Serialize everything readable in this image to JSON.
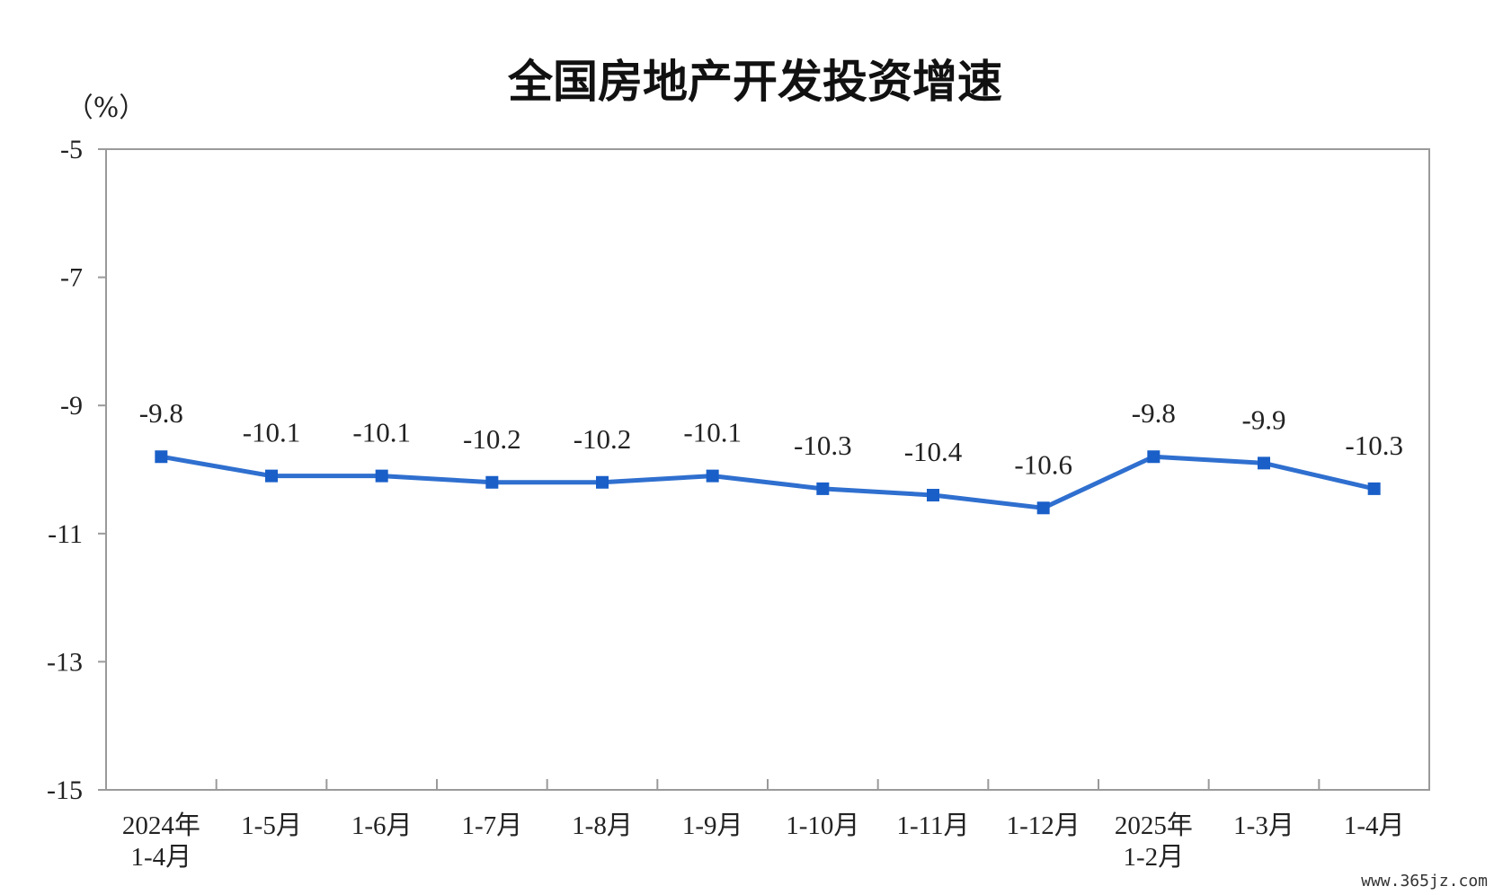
{
  "watermark": "www.365jz.com",
  "colors": {
    "line": "#2f6fcf",
    "marker": "#1a5fc8",
    "axis": "#9a9a9a"
  },
  "chart_data": {
    "type": "line",
    "title": "全国房地产开发投资增速",
    "ylabel": "（%）",
    "ylim": [
      -15,
      -5
    ],
    "yticks": [
      -5,
      -7,
      -9,
      -11,
      -13,
      -15
    ],
    "grid": false,
    "categories": [
      [
        "2024年",
        "1-4月"
      ],
      [
        "1-5月"
      ],
      [
        "1-6月"
      ],
      [
        "1-7月"
      ],
      [
        "1-8月"
      ],
      [
        "1-9月"
      ],
      [
        "1-10月"
      ],
      [
        "1-11月"
      ],
      [
        "1-12月"
      ],
      [
        "2025年",
        "1-2月"
      ],
      [
        "1-3月"
      ],
      [
        "1-4月"
      ]
    ],
    "values": [
      -9.8,
      -10.1,
      -10.1,
      -10.2,
      -10.2,
      -10.1,
      -10.3,
      -10.4,
      -10.6,
      -9.8,
      -9.9,
      -10.3
    ],
    "labels": [
      "-9.8",
      "-10.1",
      "-10.1",
      "-10.2",
      "-10.2",
      "-10.1",
      "-10.3",
      "-10.4",
      "-10.6",
      "-9.8",
      "-9.9",
      "-10.3"
    ]
  }
}
